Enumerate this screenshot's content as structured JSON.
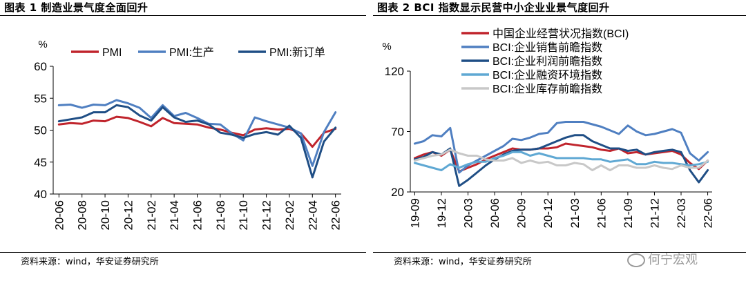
{
  "fig_left": {
    "title": "图表 1  制造业景气度全面回升",
    "source": "资料来源：wind，华安证券研究所"
  },
  "fig_right": {
    "title": "图表 2 BCI 指数显示民营中小企业业景气度回升",
    "source": "资料来源：wind，华安证券研究所"
  },
  "watermark": "何宁宏观",
  "colors": {
    "red": "#c0242c",
    "mid_blue": "#4f7fc1",
    "dark_blue": "#1f4e85",
    "light_blue": "#5fa8d3",
    "gray": "#c8c8c8"
  },
  "chart_data": [
    {
      "type": "line",
      "unit_label": "%",
      "ylim": [
        40,
        60
      ],
      "yticks": [
        40,
        45,
        50,
        55,
        60
      ],
      "legend_position": "top",
      "x_tick_labels": [
        "20-06",
        "20-08",
        "20-10",
        "20-12",
        "21-02",
        "21-04",
        "21-06",
        "21-08",
        "21-10",
        "21-12",
        "22-02",
        "22-04",
        "22-06"
      ],
      "x": [
        "20-06",
        "20-07",
        "20-08",
        "20-09",
        "20-10",
        "20-11",
        "20-12",
        "21-01",
        "21-02",
        "21-03",
        "21-04",
        "21-05",
        "21-06",
        "21-07",
        "21-08",
        "21-09",
        "21-10",
        "21-11",
        "21-12",
        "22-01",
        "22-02",
        "22-03",
        "22-04",
        "22-05",
        "22-06"
      ],
      "series": [
        {
          "name": "PMI",
          "color": "red",
          "values": [
            50.9,
            51.1,
            51.0,
            51.5,
            51.4,
            52.1,
            51.9,
            51.3,
            50.6,
            51.9,
            51.1,
            51.0,
            50.9,
            50.4,
            50.1,
            49.6,
            49.2,
            50.1,
            50.3,
            50.1,
            50.2,
            49.5,
            47.4,
            49.6,
            50.2
          ]
        },
        {
          "name": "PMI:生产",
          "color": "mid_blue",
          "values": [
            53.9,
            54.0,
            53.5,
            54.0,
            53.9,
            54.7,
            54.2,
            53.5,
            51.9,
            53.9,
            52.2,
            52.7,
            51.9,
            51.0,
            50.9,
            49.5,
            48.4,
            52.0,
            51.4,
            50.9,
            50.4,
            49.5,
            44.4,
            49.7,
            52.8
          ]
        },
        {
          "name": "PMI:新订单",
          "color": "dark_blue",
          "values": [
            51.4,
            51.7,
            52.0,
            52.8,
            52.8,
            53.9,
            53.6,
            52.3,
            51.5,
            53.6,
            52.0,
            51.3,
            51.5,
            50.9,
            49.6,
            49.3,
            48.8,
            49.4,
            49.7,
            49.3,
            50.7,
            48.8,
            42.6,
            48.2,
            50.4
          ]
        }
      ]
    },
    {
      "type": "line",
      "unit_label": "%",
      "ylim": [
        20,
        120
      ],
      "yticks": [
        20,
        70,
        120
      ],
      "legend_position": "top",
      "x_tick_labels": [
        "19-09",
        "19-12",
        "20-03",
        "20-06",
        "20-09",
        "20-12",
        "21-03",
        "21-06",
        "21-09",
        "21-12",
        "22-03",
        "22-06"
      ],
      "x": [
        "19-09",
        "19-10",
        "19-11",
        "19-12",
        "20-01",
        "20-02",
        "20-03",
        "20-04",
        "20-05",
        "20-06",
        "20-07",
        "20-08",
        "20-09",
        "20-10",
        "20-11",
        "20-12",
        "21-01",
        "21-02",
        "21-03",
        "21-04",
        "21-05",
        "21-06",
        "21-07",
        "21-08",
        "21-09",
        "21-10",
        "21-11",
        "21-12",
        "22-01",
        "22-02",
        "22-03",
        "22-04",
        "22-05",
        "22-06"
      ],
      "series": [
        {
          "name": "中国企业经营状况指数(BCI)",
          "color": "red",
          "values": [
            48,
            51,
            53,
            50,
            55,
            37,
            40,
            43,
            47,
            50,
            53,
            56,
            55,
            55,
            56,
            56,
            57,
            60,
            59,
            58,
            57,
            55,
            54,
            56,
            52,
            53,
            51,
            52,
            53,
            54,
            51,
            44,
            39,
            46
          ]
        },
        {
          "name": "BCI:企业销售前瞻指数",
          "color": "mid_blue",
          "values": [
            60,
            62,
            67,
            66,
            73,
            36,
            42,
            46,
            50,
            54,
            58,
            64,
            63,
            65,
            68,
            69,
            77,
            78,
            78,
            78,
            76,
            74,
            71,
            68,
            75,
            70,
            67,
            68,
            70,
            72,
            69,
            52,
            46,
            53
          ]
        },
        {
          "name": "BCI:企业利润前瞻指数",
          "color": "dark_blue",
          "values": [
            47,
            49,
            53,
            51,
            56,
            25,
            30,
            36,
            42,
            47,
            51,
            54,
            55,
            55,
            56,
            59,
            62,
            65,
            67,
            67,
            62,
            59,
            56,
            56,
            54,
            55,
            51,
            53,
            54,
            55,
            53,
            38,
            28,
            38
          ]
        },
        {
          "name": "BCI:企业融资环境指数",
          "color": "light_blue",
          "values": [
            44,
            42,
            40,
            38,
            43,
            40,
            43,
            45,
            45,
            48,
            50,
            53,
            53,
            50,
            52,
            50,
            48,
            48,
            48,
            48,
            47,
            47,
            45,
            46,
            47,
            43,
            43,
            45,
            44,
            44,
            43,
            42,
            43,
            45
          ]
        },
        {
          "name": "BCI:企业库存前瞻指数",
          "color": "gray",
          "values": [
            46,
            48,
            50,
            51,
            55,
            52,
            50,
            50,
            47,
            46,
            46,
            48,
            44,
            46,
            44,
            45,
            42,
            42,
            44,
            43,
            38,
            42,
            38,
            42,
            42,
            40,
            40,
            42,
            40,
            39,
            42,
            40,
            40,
            46
          ]
        }
      ]
    }
  ]
}
